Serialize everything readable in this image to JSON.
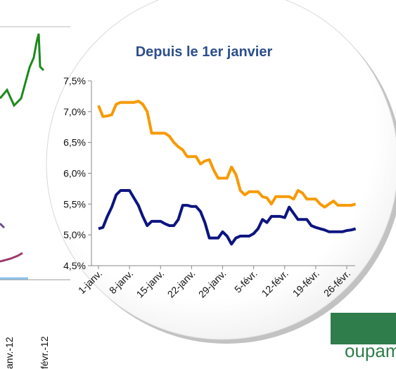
{
  "background": {
    "x_labels": [
      "anv.-12",
      "févr.-12"
    ],
    "logo": "oupama"
  },
  "chart_data": {
    "type": "line",
    "title": "Depuis le 1er janvier",
    "categories": [
      "1-janv.",
      null,
      null,
      null,
      null,
      null,
      null,
      "8-janv.",
      null,
      null,
      null,
      null,
      null,
      null,
      "15-janv.",
      null,
      null,
      null,
      null,
      null,
      null,
      "22-janv.",
      null,
      null,
      null,
      null,
      null,
      null,
      "29-janv.",
      null,
      null,
      null,
      null,
      null,
      null,
      "5-févr.",
      null,
      null,
      null,
      null,
      null,
      null,
      "12-févr.",
      null,
      null,
      null,
      null,
      null,
      null,
      "19-févr.",
      null,
      null,
      null,
      null,
      null,
      null,
      "26-févr.",
      null,
      null
    ],
    "series": [
      {
        "color": "#f79a00",
        "values": [
          7.1,
          6.92,
          6.93,
          6.95,
          7.12,
          7.15,
          7.15,
          7.15,
          7.15,
          7.17,
          7.12,
          7.0,
          6.65,
          6.65,
          6.65,
          6.65,
          6.6,
          6.5,
          6.43,
          6.38,
          6.27,
          6.27,
          6.27,
          6.15,
          6.2,
          6.22,
          6.05,
          5.92,
          5.92,
          5.92,
          6.1,
          5.98,
          5.72,
          5.65,
          5.7,
          5.7,
          5.7,
          5.62,
          5.6,
          5.5,
          5.62,
          5.62,
          5.62,
          5.62,
          5.58,
          5.72,
          5.68,
          5.58,
          5.58,
          5.58,
          5.5,
          5.45,
          5.5,
          5.55,
          5.48,
          5.48,
          5.48,
          5.48,
          5.5
        ]
      },
      {
        "color": "#0d1480",
        "values": [
          5.1,
          5.12,
          5.3,
          5.45,
          5.65,
          5.72,
          5.72,
          5.72,
          5.6,
          5.48,
          5.3,
          5.15,
          5.22,
          5.22,
          5.22,
          5.18,
          5.15,
          5.15,
          5.25,
          5.48,
          5.48,
          5.46,
          5.46,
          5.38,
          5.2,
          4.95,
          4.95,
          4.95,
          5.05,
          4.98,
          4.85,
          4.95,
          4.98,
          4.98,
          4.98,
          5.02,
          5.1,
          5.25,
          5.2,
          5.3,
          5.3,
          5.3,
          5.28,
          5.45,
          5.35,
          5.25,
          5.25,
          5.25,
          5.15,
          5.12,
          5.1,
          5.08,
          5.05,
          5.05,
          5.05,
          5.05,
          5.07,
          5.08,
          5.1
        ]
      }
    ],
    "ylim": [
      4.5,
      7.5
    ],
    "yticks": [
      {
        "value": 4.5,
        "label": "4,5%"
      },
      {
        "value": 5,
        "label": "5,0%"
      },
      {
        "value": 5.5,
        "label": "5,5%"
      },
      {
        "value": 6,
        "label": "6,0%"
      },
      {
        "value": 6.5,
        "label": "6,5%"
      },
      {
        "value": 7,
        "label": "7,0%"
      },
      {
        "value": 7.5,
        "label": "7,5%"
      }
    ],
    "grid": false
  }
}
